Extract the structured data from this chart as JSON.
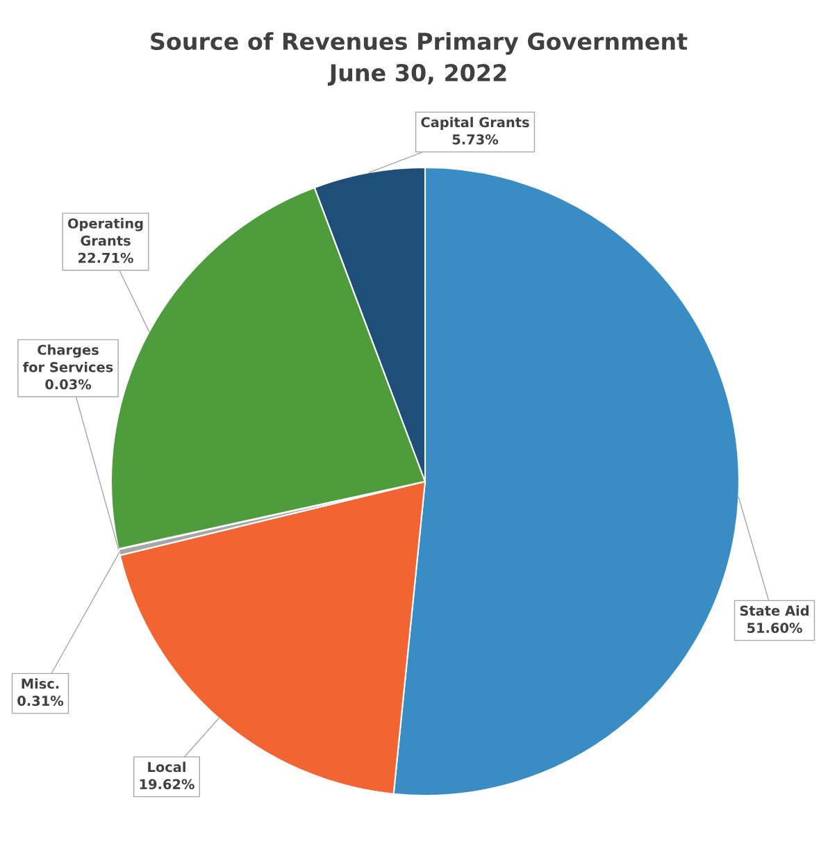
{
  "chart_data": {
    "type": "pie",
    "title": "Source of Revenues Primary Government\nJune 30, 2022",
    "categories": [
      "State Aid",
      "Local",
      "Misc.",
      "Charges for Services",
      "Operating Grants",
      "Capital Grants"
    ],
    "values": [
      51.6,
      19.62,
      0.31,
      0.03,
      22.71,
      5.73
    ],
    "value_labels": [
      "51.60%",
      "19.62%",
      "0.31%",
      "0.03%",
      "22.71%",
      "5.73%"
    ],
    "colors": [
      "#3a8dc4",
      "#f26532",
      "#a6a6a6",
      "#ffc000",
      "#4f9c3c",
      "#1f4e79"
    ]
  }
}
